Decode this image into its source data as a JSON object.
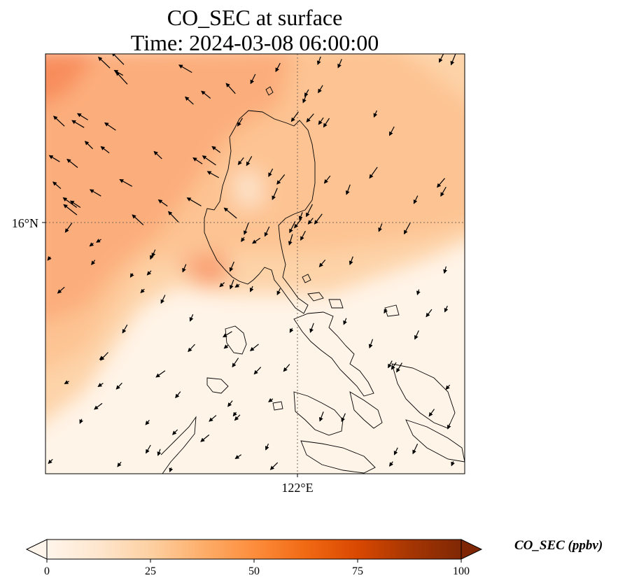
{
  "chart_data": {
    "type": "heatmap",
    "title_line1": "CO_SEC at surface",
    "title_line2": "Time: 2024-03-08 06:00:00",
    "variable": "CO_SEC",
    "units": "ppbv",
    "colorbar_label": "CO_SEC (ppbv)",
    "colorbar_ticks": [
      0,
      25,
      50,
      75,
      100
    ],
    "colorbar_range": [
      0,
      100
    ],
    "colormap": [
      "#fff5eb",
      "#fee6ce",
      "#fdd0a2",
      "#fdae6b",
      "#fd8d3c",
      "#f16913",
      "#d94801",
      "#a63603",
      "#7f2704"
    ],
    "colorbar_extend": "both",
    "lat_ticks": [
      "16°N"
    ],
    "lon_ticks": [
      "122°E"
    ],
    "gridlines": "dotted",
    "overlays": [
      "coastlines",
      "wind vectors"
    ]
  }
}
